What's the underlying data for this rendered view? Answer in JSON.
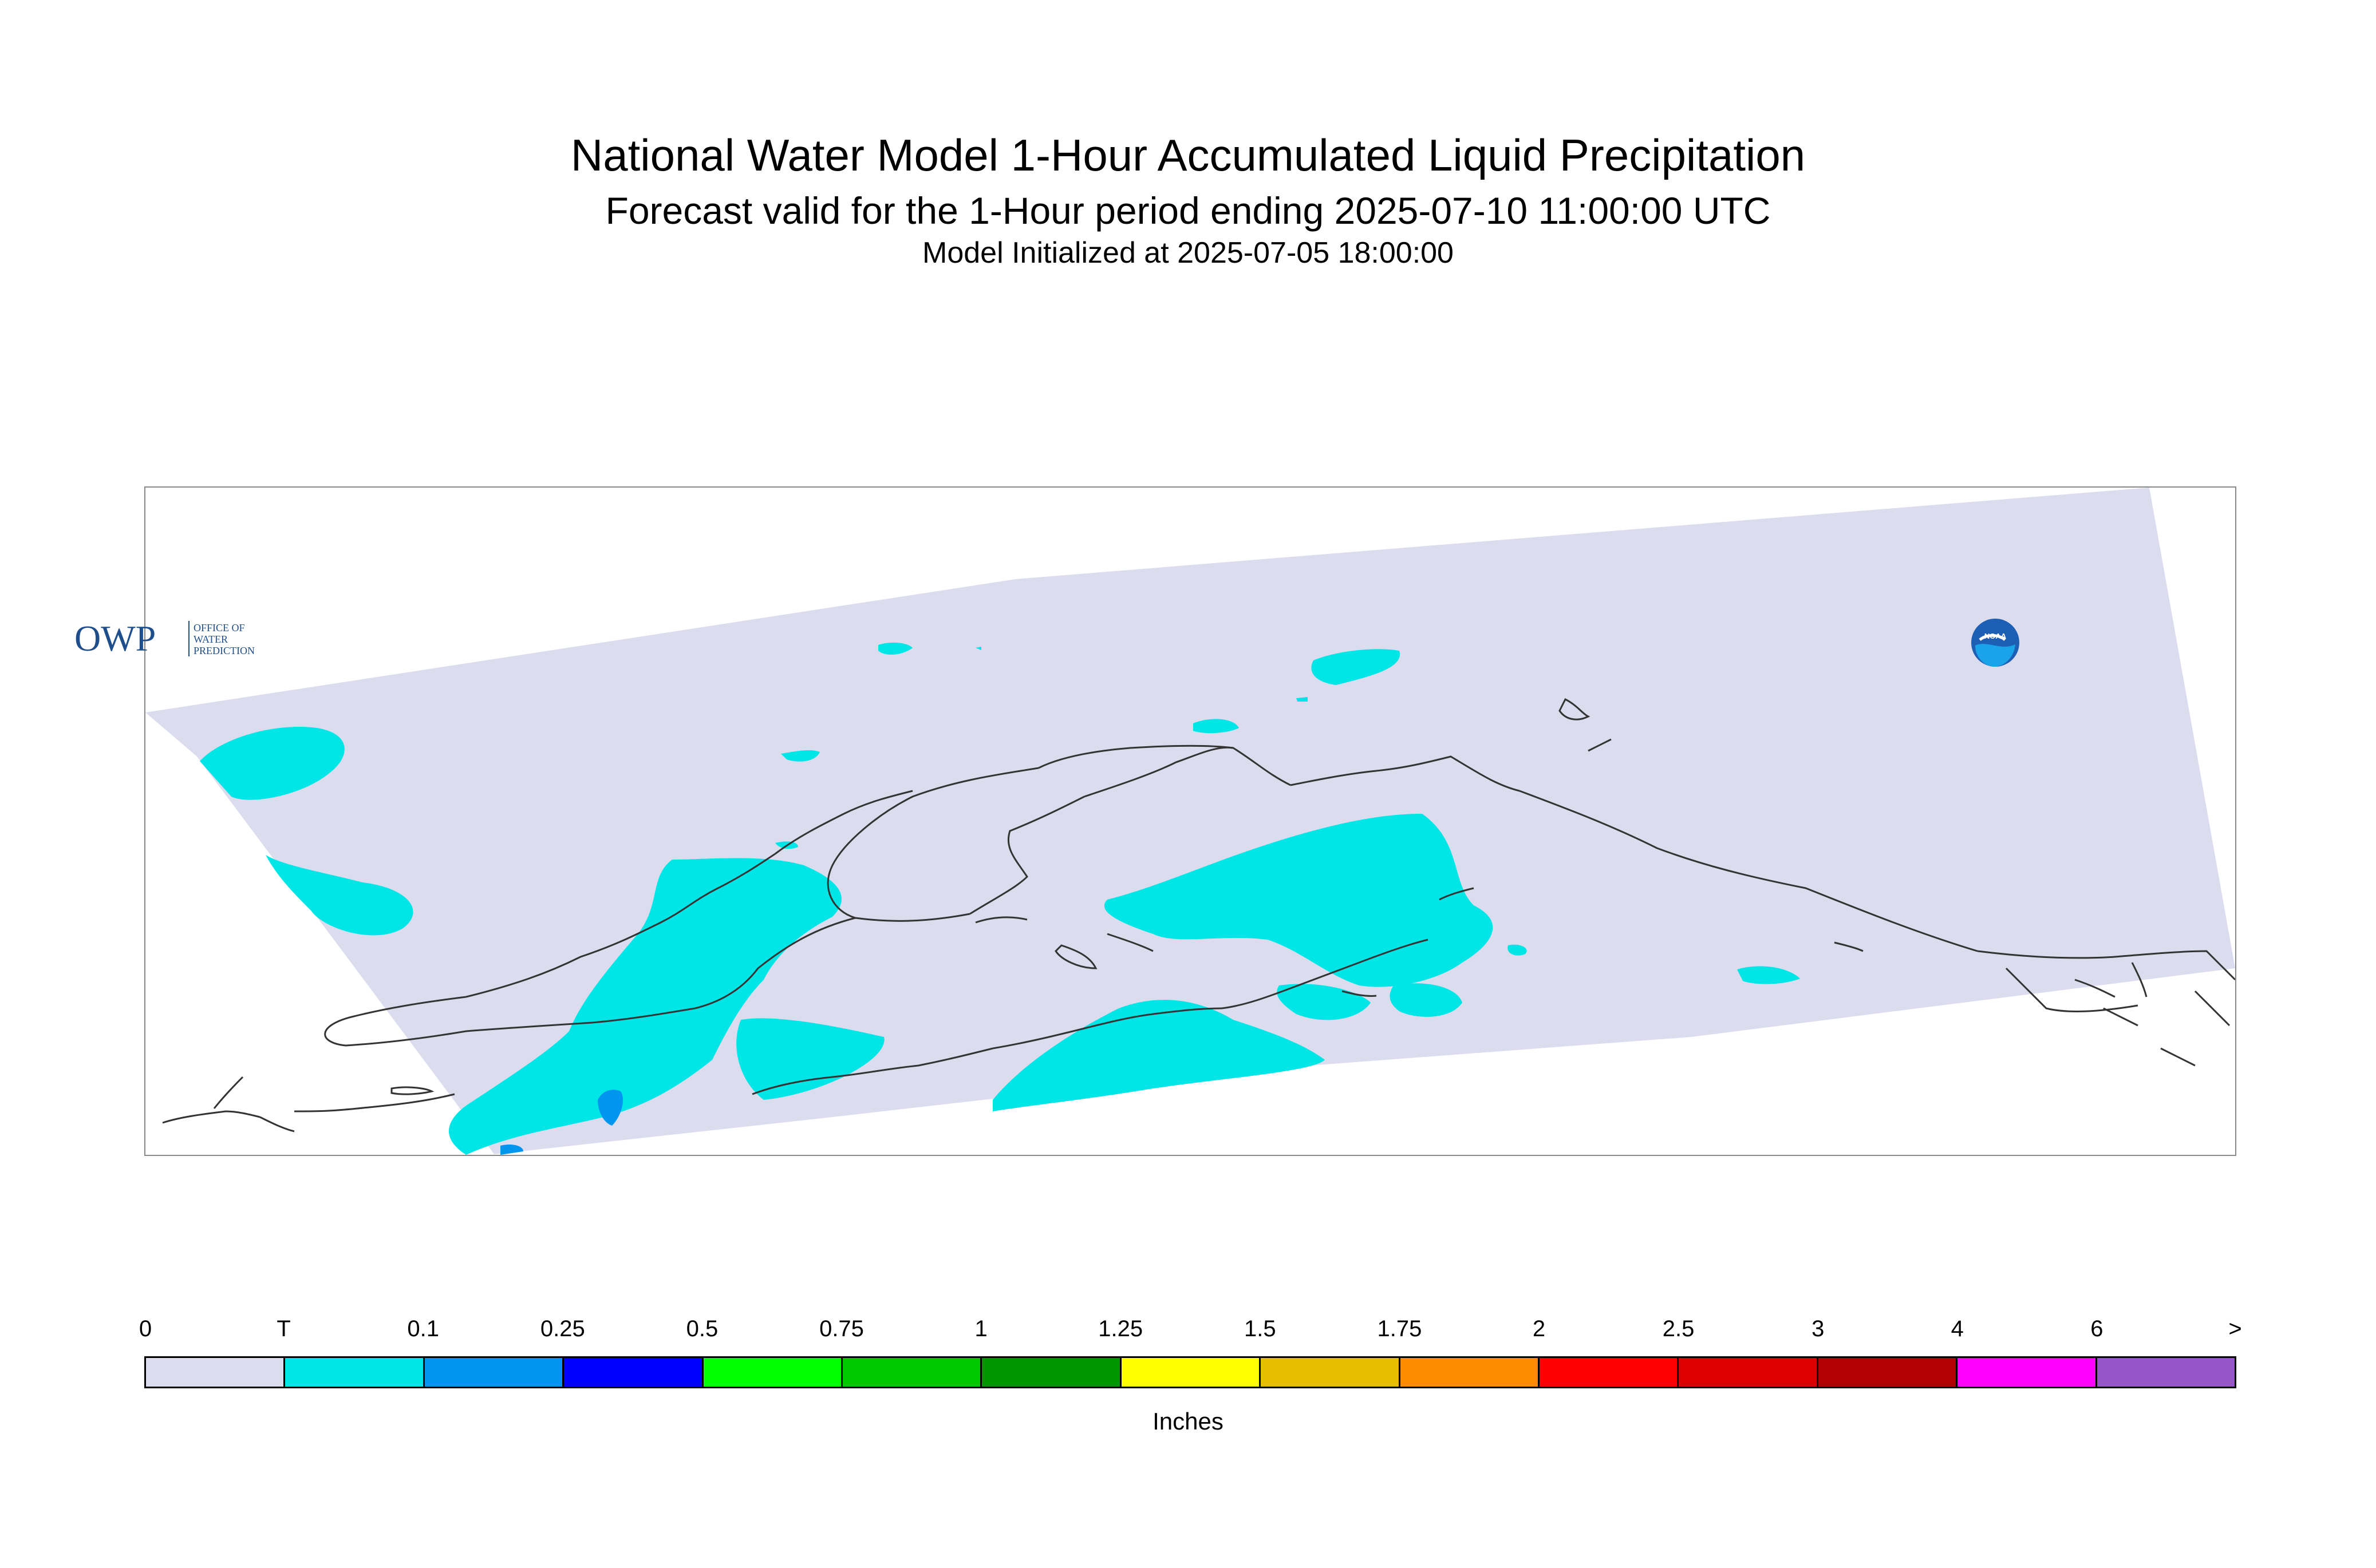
{
  "header": {
    "title": "National Water Model 1-Hour Accumulated Liquid Precipitation",
    "subtitle": "Forecast valid for the 1-Hour period ending 2025-07-10 11:00:00 UTC",
    "init": "Model Initialized at 2025-07-05 18:00:00"
  },
  "logos": {
    "owp_mark": "OWP",
    "owp_text_1": "OFFICE OF",
    "owp_text_2": "WATER",
    "owp_text_3": "PREDICTION",
    "noaa": "NOAA"
  },
  "map": {
    "domain_color": "#dcdcef",
    "precip_trace_color": "#00e5e5",
    "precip_light_color": "#0096f0",
    "coastline_color": "#333333"
  },
  "legend": {
    "ticks": [
      "0",
      "T",
      "0.1",
      "0.25",
      "0.5",
      "0.75",
      "1",
      "1.25",
      "1.5",
      "1.75",
      "2",
      "2.5",
      "3",
      "4",
      "6",
      ">"
    ],
    "colors": [
      "#dcdcef",
      "#00e5e5",
      "#0096f0",
      "#0000ff",
      "#00ff00",
      "#00c800",
      "#009600",
      "#ffff00",
      "#e6be00",
      "#ff8c00",
      "#ff0000",
      "#dc0000",
      "#b40000",
      "#ff00ff",
      "#9655c8"
    ],
    "units": "Inches"
  }
}
